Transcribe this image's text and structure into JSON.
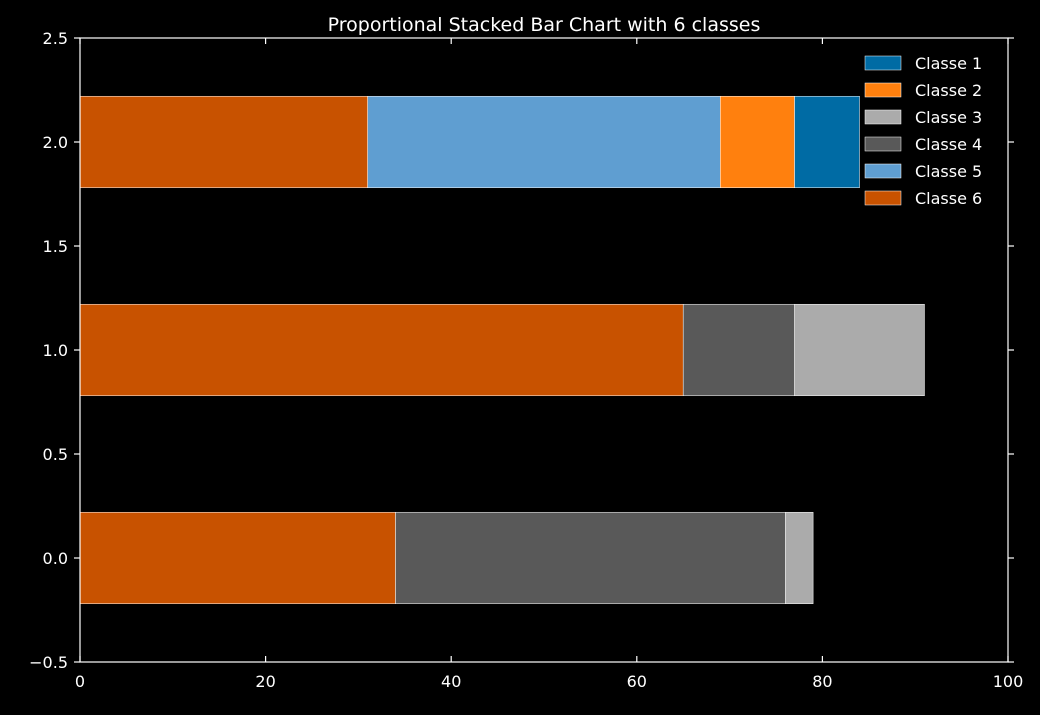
{
  "chart_data": {
    "type": "bar",
    "orientation": "horizontal",
    "stacked": true,
    "title": "Proportional Stacked Bar Chart with 6 classes",
    "xlabel": "",
    "ylabel": "",
    "xlim": [
      0,
      100
    ],
    "ylim": [
      -0.5,
      2.5
    ],
    "x_ticks": [
      0,
      20,
      40,
      60,
      80,
      100
    ],
    "y_ticks": [
      -0.5,
      0.0,
      0.5,
      1.0,
      1.5,
      2.0,
      2.5
    ],
    "x_tick_labels": [
      "0",
      "20",
      "40",
      "60",
      "80",
      "100"
    ],
    "y_tick_labels": [
      "−0.5",
      "0.0",
      "0.5",
      "1.0",
      "1.5",
      "2.0",
      "2.5"
    ],
    "categories": [
      0,
      1,
      2
    ],
    "bar_height": 0.44,
    "grid": false,
    "legend_position": "top-right",
    "series": [
      {
        "name": "Classe 1",
        "color": "#006ba4",
        "values": [
          0,
          0,
          7
        ]
      },
      {
        "name": "Classe 2",
        "color": "#ff800e",
        "values": [
          0,
          0,
          8
        ]
      },
      {
        "name": "Classe 3",
        "color": "#ababab",
        "values": [
          3,
          14,
          0
        ]
      },
      {
        "name": "Classe 4",
        "color": "#595959",
        "values": [
          42,
          12,
          0
        ]
      },
      {
        "name": "Classe 5",
        "color": "#5f9ed1",
        "values": [
          0,
          0,
          38
        ]
      },
      {
        "name": "Classe 6",
        "color": "#c85200",
        "values": [
          34,
          65,
          31
        ]
      }
    ],
    "stack_order": [
      "Classe 6",
      "Classe 5",
      "Classe 4",
      "Classe 3",
      "Classe 2",
      "Classe 1"
    ]
  }
}
